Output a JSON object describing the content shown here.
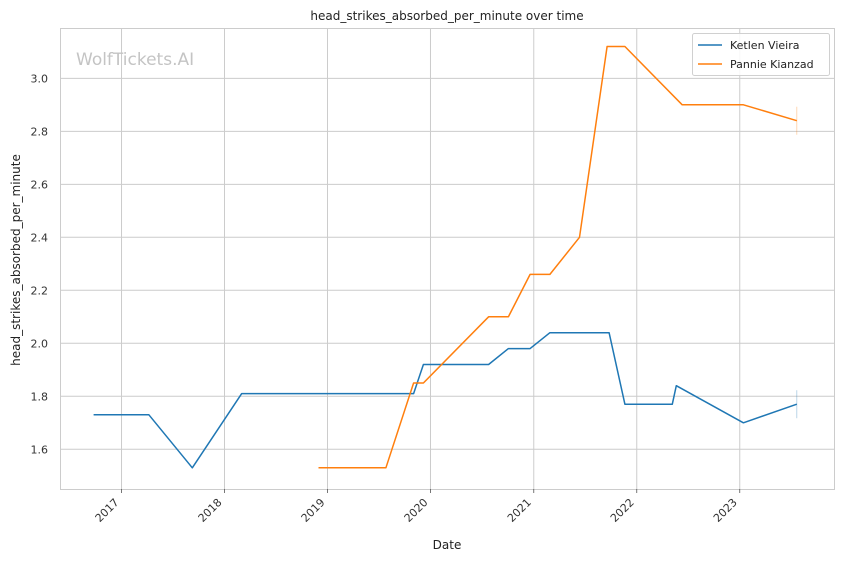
{
  "chart_data": {
    "type": "line",
    "title": "head_strikes_absorbed_per_minute over time",
    "xlabel": "Date",
    "ylabel": "head_strikes_absorbed_per_minute",
    "watermark": "WolfTickets.AI",
    "x_tick_labels": [
      "2017",
      "2018",
      "2019",
      "2020",
      "2021",
      "2022",
      "2023"
    ],
    "y_tick_labels": [
      "1.6",
      "1.8",
      "2.0",
      "2.2",
      "2.4",
      "2.6",
      "2.8",
      "3.0"
    ],
    "xlim": [
      "2016-05-28",
      "2023-12-01"
    ],
    "ylim": [
      1.45,
      3.19
    ],
    "grid": true,
    "legend_position": "top-right",
    "series": [
      {
        "name": "Ketlen Vieira",
        "color": "#1f77b4",
        "points": [
          {
            "x": "2016-09-24",
            "y": 1.73
          },
          {
            "x": "2017-04-08",
            "y": 1.73
          },
          {
            "x": "2017-09-09",
            "y": 1.53
          },
          {
            "x": "2018-03-03",
            "y": 1.81
          },
          {
            "x": "2019-11-02",
            "y": 1.81
          },
          {
            "x": "2019-12-07",
            "y": 1.92
          },
          {
            "x": "2020-07-25",
            "y": 1.92
          },
          {
            "x": "2020-10-03",
            "y": 1.98
          },
          {
            "x": "2020-12-19",
            "y": 1.98
          },
          {
            "x": "2021-02-27",
            "y": 2.04
          },
          {
            "x": "2021-09-25",
            "y": 2.04
          },
          {
            "x": "2021-11-20",
            "y": 1.77
          },
          {
            "x": "2022-05-07",
            "y": 1.77
          },
          {
            "x": "2022-05-21",
            "y": 1.84
          },
          {
            "x": "2023-01-14",
            "y": 1.7
          },
          {
            "x": "2023-07-22",
            "y": 1.77
          }
        ]
      },
      {
        "name": "Pannie Kianzad",
        "color": "#ff7f0e",
        "points": [
          {
            "x": "2018-11-30",
            "y": 1.53
          },
          {
            "x": "2019-07-27",
            "y": 1.53
          },
          {
            "x": "2019-11-02",
            "y": 1.85
          },
          {
            "x": "2019-12-07",
            "y": 1.85
          },
          {
            "x": "2020-07-25",
            "y": 2.1
          },
          {
            "x": "2020-10-03",
            "y": 2.1
          },
          {
            "x": "2020-12-19",
            "y": 2.26
          },
          {
            "x": "2021-02-27",
            "y": 2.26
          },
          {
            "x": "2021-06-12",
            "y": 2.4
          },
          {
            "x": "2021-09-18",
            "y": 3.12
          },
          {
            "x": "2021-11-20",
            "y": 3.12
          },
          {
            "x": "2022-06-11",
            "y": 2.9
          },
          {
            "x": "2023-01-14",
            "y": 2.9
          },
          {
            "x": "2023-07-22",
            "y": 2.84
          }
        ]
      }
    ]
  }
}
